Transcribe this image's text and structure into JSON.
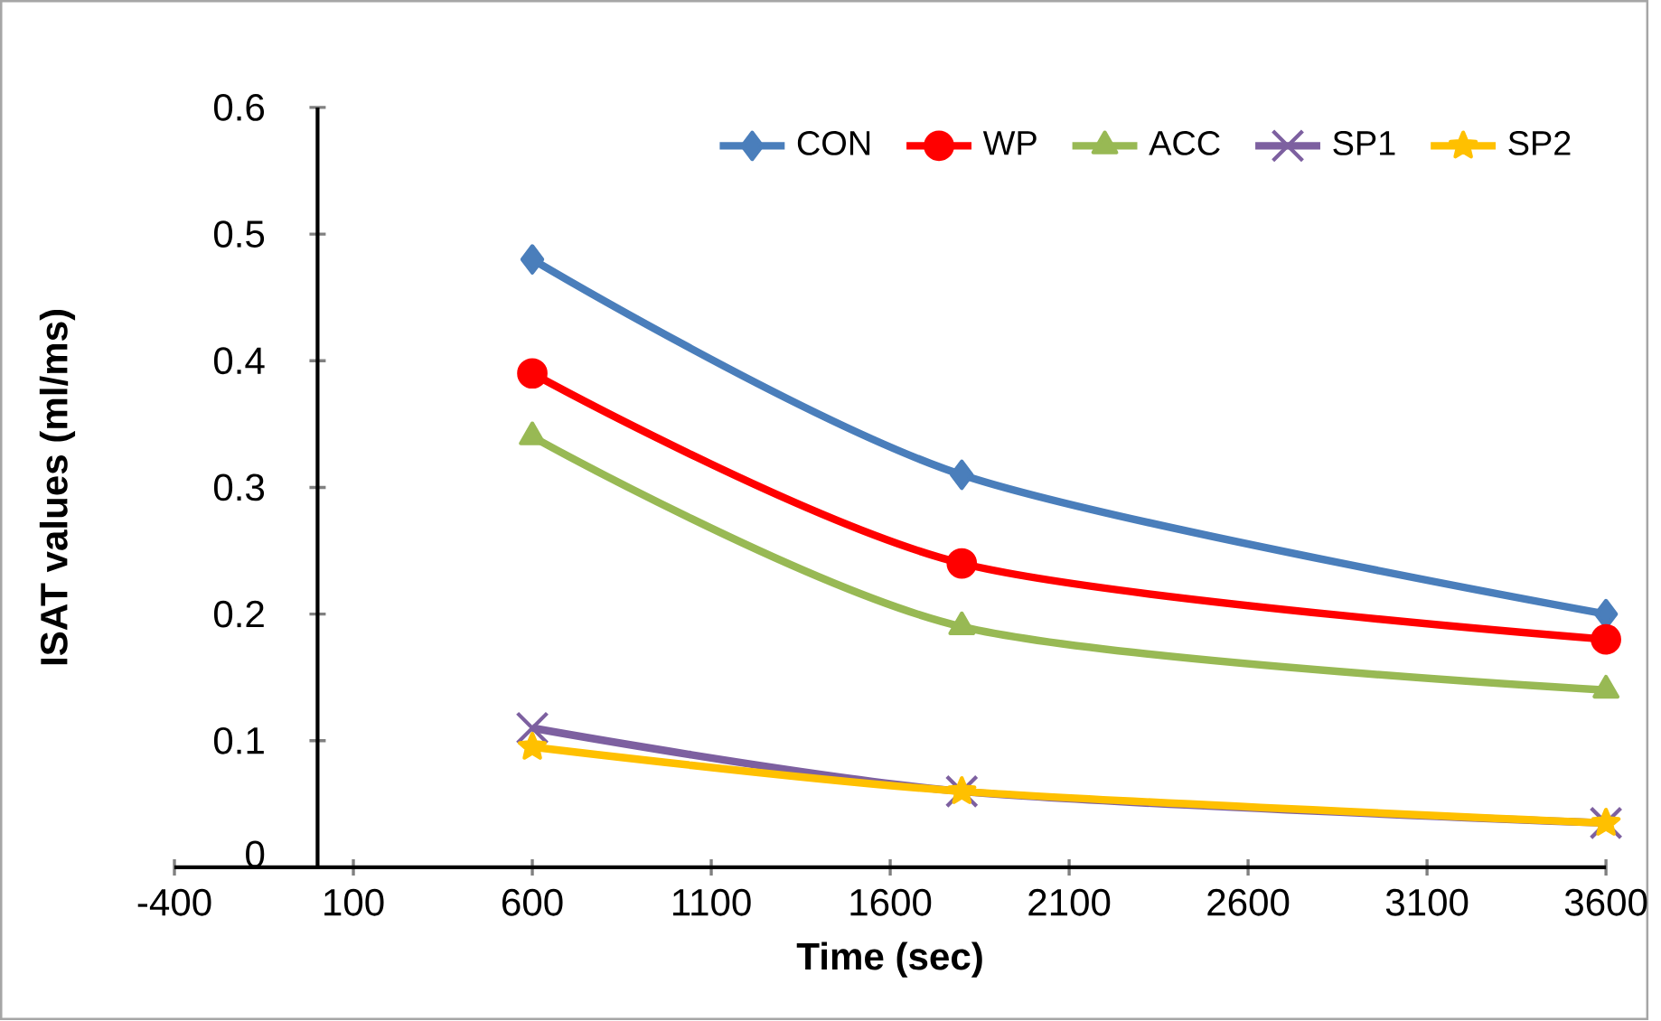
{
  "chart_data": {
    "type": "line",
    "xlabel": "Time (sec)",
    "ylabel": "ISAT values (ml/ms)",
    "x": [
      600,
      1800,
      3600
    ],
    "series": [
      {
        "name": "CON",
        "color": "#4a7ebb",
        "values": [
          0.48,
          0.31,
          0.2
        ],
        "marker": "diamond"
      },
      {
        "name": "WP",
        "color": "#ff0000",
        "values": [
          0.39,
          0.24,
          0.18
        ],
        "marker": "circle"
      },
      {
        "name": "ACC",
        "color": "#98b954",
        "values": [
          0.34,
          0.19,
          0.14
        ],
        "marker": "triangle"
      },
      {
        "name": "SP1",
        "color": "#7d60a0",
        "values": [
          0.11,
          0.06,
          0.035
        ],
        "marker": "cross"
      },
      {
        "name": "SP2",
        "color": "#ffc000",
        "values": [
          0.095,
          0.06,
          0.035
        ],
        "marker": "star"
      }
    ],
    "xlim": [
      -400,
      3600
    ],
    "xticks": [
      -400,
      100,
      600,
      1100,
      1600,
      2100,
      2600,
      3100,
      3600
    ],
    "ylim": [
      0,
      0.6
    ],
    "yticks": [
      0,
      0.1,
      0.2,
      0.3,
      0.4,
      0.5,
      0.6
    ],
    "legend": "top right",
    "grid": false
  }
}
